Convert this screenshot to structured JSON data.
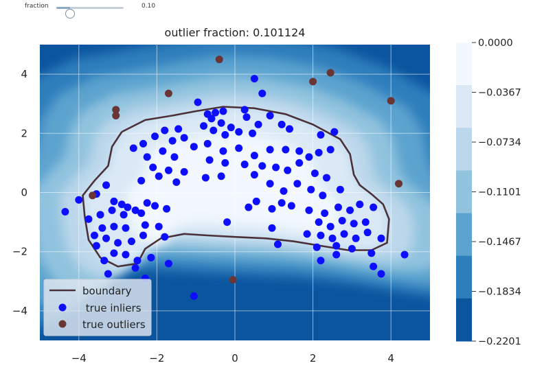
{
  "slider": {
    "label": "fraction",
    "value_text": "0.10",
    "value": 0.1,
    "min": 0,
    "max": 0.5
  },
  "chart_data": {
    "type": "scatter",
    "title": "outlier fraction: 0.101124",
    "xlim": [
      -5,
      5
    ],
    "ylim": [
      -5,
      5
    ],
    "xticks": [
      -4,
      -2,
      0,
      2,
      4
    ],
    "yticks": [
      -4,
      -2,
      0,
      2,
      4
    ],
    "xtick_labels": [
      "−4",
      "−2",
      "0",
      "2",
      "4"
    ],
    "ytick_labels": [
      "−4",
      "−2",
      "0",
      "2",
      "4"
    ],
    "colorbar": {
      "ticks": [
        "0.0000",
        "−0.0367",
        "−0.0734",
        "−0.1101",
        "−0.1467",
        "−0.1834",
        "−0.2201"
      ],
      "colors": [
        "#f2f8fd",
        "#dbe9f6",
        "#bcd7eb",
        "#91c3de",
        "#5ca3cf",
        "#2e7ebc",
        "#0b559f"
      ]
    },
    "legend": {
      "position": "lower-left",
      "boundary_label": "boundary",
      "inliers_label": " true inliers",
      "outliers_label": "true outliers"
    },
    "colors": {
      "boundary": "#4a3038",
      "inlier": "#0d0dff",
      "outlier": "#6a3535"
    },
    "boundary": [
      [
        -2.9,
        2.05
      ],
      [
        -2.3,
        2.45
      ],
      [
        -1.6,
        2.6
      ],
      [
        -1,
        2.75
      ],
      [
        -0.3,
        2.9
      ],
      [
        0.5,
        2.85
      ],
      [
        1.3,
        2.65
      ],
      [
        2,
        2.3
      ],
      [
        2.7,
        1.8
      ],
      [
        2.95,
        1.3
      ],
      [
        3.05,
        0.6
      ],
      [
        3.2,
        0.25
      ],
      [
        3.5,
        -0.05
      ],
      [
        3.8,
        -0.4
      ],
      [
        3.95,
        -0.9
      ],
      [
        3.9,
        -1.7
      ],
      [
        3.5,
        -1.95
      ],
      [
        2.9,
        -1.95
      ],
      [
        2.2,
        -1.8
      ],
      [
        1.5,
        -1.65
      ],
      [
        0.8,
        -1.55
      ],
      [
        0,
        -1.5
      ],
      [
        -0.7,
        -1.45
      ],
      [
        -1.3,
        -1.4
      ],
      [
        -1.9,
        -1.55
      ],
      [
        -2.3,
        -1.9
      ],
      [
        -2.5,
        -2.4
      ],
      [
        -3,
        -2.5
      ],
      [
        -3.45,
        -2.2
      ],
      [
        -3.75,
        -1.6
      ],
      [
        -3.85,
        -0.8
      ],
      [
        -3.9,
        -0.1
      ],
      [
        -3.6,
        0.4
      ],
      [
        -3.25,
        0.9
      ],
      [
        -3.15,
        1.55
      ],
      [
        -2.9,
        2.05
      ]
    ],
    "inliers": [
      [
        0.5,
        3.85
      ],
      [
        0.7,
        3.35
      ],
      [
        -0.95,
        3.05
      ],
      [
        -0.7,
        2.65
      ],
      [
        -0.5,
        2.7
      ],
      [
        -0.3,
        2.75
      ],
      [
        0.25,
        2.8
      ],
      [
        -0.6,
        2.5
      ],
      [
        -0.35,
        2.35
      ],
      [
        -0.1,
        2.2
      ],
      [
        0.3,
        2.55
      ],
      [
        0.6,
        2.3
      ],
      [
        0.9,
        2.6
      ],
      [
        1.2,
        2.3
      ],
      [
        1.4,
        2.15
      ],
      [
        -0.8,
        2.25
      ],
      [
        -0.55,
        2.1
      ],
      [
        -0.25,
        1.95
      ],
      [
        0.1,
        2.05
      ],
      [
        0.45,
        2.0
      ],
      [
        -1.45,
        2.15
      ],
      [
        -1.8,
        2.1
      ],
      [
        -2.05,
        1.9
      ],
      [
        -2.35,
        1.65
      ],
      [
        -1.6,
        1.75
      ],
      [
        -1.3,
        1.85
      ],
      [
        -1.85,
        1.4
      ],
      [
        -2.25,
        1.2
      ],
      [
        -2.6,
        1.5
      ],
      [
        -1.55,
        1.2
      ],
      [
        -1.05,
        1.55
      ],
      [
        -0.7,
        1.65
      ],
      [
        -0.3,
        1.4
      ],
      [
        0.1,
        1.5
      ],
      [
        0.5,
        1.25
      ],
      [
        0.9,
        1.45
      ],
      [
        1.3,
        1.45
      ],
      [
        1.65,
        1.4
      ],
      [
        1.9,
        1.2
      ],
      [
        2.15,
        1.35
      ],
      [
        2.45,
        1.45
      ],
      [
        2.2,
        1.95
      ],
      [
        2.55,
        2.05
      ],
      [
        -2.1,
        0.85
      ],
      [
        -1.7,
        0.75
      ],
      [
        -1.3,
        0.7
      ],
      [
        -0.65,
        1.1
      ],
      [
        -0.25,
        1.0
      ],
      [
        0.25,
        0.95
      ],
      [
        0.7,
        0.9
      ],
      [
        1.05,
        0.85
      ],
      [
        1.35,
        0.75
      ],
      [
        1.65,
        1.0
      ],
      [
        2.05,
        0.65
      ],
      [
        2.35,
        0.5
      ],
      [
        -2.4,
        0.4
      ],
      [
        -1.95,
        0.55
      ],
      [
        -1.5,
        0.35
      ],
      [
        -0.75,
        0.5
      ],
      [
        -0.35,
        0.55
      ],
      [
        0.5,
        0.6
      ],
      [
        0.9,
        0.3
      ],
      [
        1.25,
        0.05
      ],
      [
        1.6,
        0.3
      ],
      [
        1.95,
        0.1
      ],
      [
        2.25,
        -0.1
      ],
      [
        2.7,
        0.1
      ],
      [
        -3.3,
        0.25
      ],
      [
        -3.55,
        -0.05
      ],
      [
        -3.1,
        -0.3
      ],
      [
        -2.9,
        -0.4
      ],
      [
        -2.75,
        -0.5
      ],
      [
        -2.55,
        -0.6
      ],
      [
        -2.25,
        -0.35
      ],
      [
        -2.05,
        -0.45
      ],
      [
        -1.75,
        -0.55
      ],
      [
        -2.4,
        -0.7
      ],
      [
        -2.85,
        -0.75
      ],
      [
        -3.15,
        -0.6
      ],
      [
        -3.45,
        -0.75
      ],
      [
        -3.75,
        -0.9
      ],
      [
        -3.4,
        -1.2
      ],
      [
        -3.1,
        -1.15
      ],
      [
        -2.8,
        -1.2
      ],
      [
        -2.3,
        -1.1
      ],
      [
        -1.95,
        -1.15
      ],
      [
        -3.6,
        -1.45
      ],
      [
        -3.3,
        -1.55
      ],
      [
        -3.0,
        -1.7
      ],
      [
        -2.65,
        -1.65
      ],
      [
        -2.35,
        -1.45
      ],
      [
        -1.8,
        -1.5
      ],
      [
        -3.1,
        -2.05
      ],
      [
        -2.8,
        -2.1
      ],
      [
        -2.5,
        -2.3
      ],
      [
        -2.15,
        -2.2
      ],
      [
        -3.55,
        -1.8
      ],
      [
        -4.35,
        -0.65
      ],
      [
        -4.0,
        -0.25
      ],
      [
        -3.35,
        -2.3
      ],
      [
        -2.55,
        -2.55
      ],
      [
        -2.3,
        -2.9
      ],
      [
        -3.25,
        -2.75
      ],
      [
        -1.7,
        -2.4
      ],
      [
        0.55,
        -0.3
      ],
      [
        0.95,
        -0.55
      ],
      [
        1.2,
        -0.35
      ],
      [
        1.45,
        -0.45
      ],
      [
        0.35,
        -0.5
      ],
      [
        -0.2,
        -1.0
      ],
      [
        0.95,
        -1.2
      ],
      [
        1.9,
        -0.6
      ],
      [
        2.3,
        -0.7
      ],
      [
        2.65,
        -0.5
      ],
      [
        2.95,
        -0.6
      ],
      [
        3.2,
        -0.4
      ],
      [
        3.55,
        -0.5
      ],
      [
        2.15,
        -1.0
      ],
      [
        2.45,
        -1.15
      ],
      [
        2.75,
        -0.95
      ],
      [
        3.05,
        -1.05
      ],
      [
        3.35,
        -1.0
      ],
      [
        1.85,
        -1.4
      ],
      [
        2.2,
        -1.45
      ],
      [
        2.5,
        -1.55
      ],
      [
        2.8,
        -1.4
      ],
      [
        3.1,
        -1.55
      ],
      [
        3.4,
        -1.35
      ],
      [
        3.75,
        -1.55
      ],
      [
        2.1,
        -1.85
      ],
      [
        2.6,
        -1.8
      ],
      [
        3.0,
        -1.9
      ],
      [
        3.5,
        -2.05
      ],
      [
        1.1,
        -1.75
      ],
      [
        2.2,
        -2.3
      ],
      [
        2.6,
        -2.1
      ],
      [
        4.35,
        -2.1
      ],
      [
        3.55,
        -2.5
      ],
      [
        3.75,
        -2.75
      ],
      [
        -1.05,
        -3.5
      ]
    ],
    "outliers": [
      [
        -0.4,
        4.5
      ],
      [
        -1.7,
        3.35
      ],
      [
        2.45,
        4.05
      ],
      [
        2.0,
        3.75
      ],
      [
        4.0,
        3.1
      ],
      [
        -3.05,
        2.8
      ],
      [
        -3.05,
        2.6
      ],
      [
        -3.65,
        -0.1
      ],
      [
        4.2,
        0.3
      ],
      [
        -0.05,
        -2.95
      ]
    ]
  }
}
